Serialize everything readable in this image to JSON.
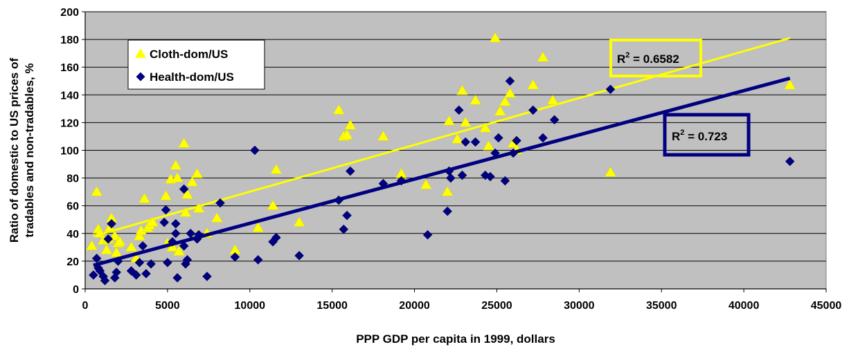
{
  "chart_data": {
    "type": "scatter",
    "xlabel": "PPP GDP per capita in 1999, dollars",
    "ylabel_lines": [
      "Ratio of domestic to US prices of",
      "tradables and non-tradables, %"
    ],
    "xlim": [
      0,
      45000
    ],
    "ylim": [
      0,
      200
    ],
    "xticks": [
      "0",
      "5000",
      "10000",
      "15000",
      "20000",
      "25000",
      "30000",
      "35000",
      "40000",
      "45000"
    ],
    "yticks": [
      "0",
      "20",
      "40",
      "60",
      "80",
      "100",
      "120",
      "140",
      "160",
      "180",
      "200"
    ],
    "grid": "horizontal",
    "background": "#c0c0c0",
    "legend_position": "top-left",
    "series": [
      {
        "name": "Cloth-dom/US",
        "marker": "triangle",
        "color": "#ffff00",
        "trendline": {
          "x": [
            500,
            42800
          ],
          "y": [
            38,
            181
          ]
        },
        "r2_label": {
          "prefix": "R",
          "sup": "2",
          "value": " = 0.6582"
        },
        "points": [
          [
            400,
            31
          ],
          [
            700,
            70
          ],
          [
            800,
            43
          ],
          [
            900,
            40
          ],
          [
            1100,
            35
          ],
          [
            1300,
            28
          ],
          [
            1400,
            36
          ],
          [
            1500,
            44
          ],
          [
            1600,
            51
          ],
          [
            1800,
            38
          ],
          [
            1900,
            26
          ],
          [
            2000,
            33
          ],
          [
            2100,
            34
          ],
          [
            2800,
            30
          ],
          [
            3100,
            22
          ],
          [
            3300,
            38
          ],
          [
            3400,
            42
          ],
          [
            3600,
            65
          ],
          [
            3800,
            44
          ],
          [
            3900,
            46
          ],
          [
            4100,
            48
          ],
          [
            4900,
            67
          ],
          [
            5000,
            33
          ],
          [
            5200,
            79
          ],
          [
            5300,
            30
          ],
          [
            5500,
            89
          ],
          [
            5600,
            80
          ],
          [
            5700,
            27
          ],
          [
            6000,
            105
          ],
          [
            6100,
            55
          ],
          [
            6200,
            68
          ],
          [
            6500,
            77
          ],
          [
            6800,
            83
          ],
          [
            6900,
            58
          ],
          [
            7400,
            40
          ],
          [
            8000,
            51
          ],
          [
            9100,
            28
          ],
          [
            10500,
            44
          ],
          [
            11400,
            60
          ],
          [
            11600,
            86
          ],
          [
            13000,
            48
          ],
          [
            15400,
            129
          ],
          [
            15700,
            110
          ],
          [
            15900,
            111
          ],
          [
            16100,
            118
          ],
          [
            18100,
            110
          ],
          [
            19200,
            83
          ],
          [
            20700,
            75
          ],
          [
            22000,
            70
          ],
          [
            22100,
            121
          ],
          [
            22600,
            108
          ],
          [
            22900,
            143
          ],
          [
            23100,
            120
          ],
          [
            23700,
            136
          ],
          [
            24300,
            116
          ],
          [
            24500,
            103
          ],
          [
            24900,
            181
          ],
          [
            25200,
            128
          ],
          [
            25500,
            135
          ],
          [
            25800,
            141
          ],
          [
            26000,
            105
          ],
          [
            26200,
            100
          ],
          [
            27200,
            147
          ],
          [
            27800,
            167
          ],
          [
            28400,
            136
          ],
          [
            31900,
            84
          ],
          [
            42800,
            147
          ]
        ]
      },
      {
        "name": "Health-dom/US",
        "marker": "diamond",
        "color": "#000080",
        "trendline": {
          "x": [
            500,
            42800
          ],
          "y": [
            17,
            152
          ]
        },
        "r2_label": {
          "prefix": "R",
          "sup": "2",
          "value": " = 0.723"
        },
        "points": [
          [
            500,
            10
          ],
          [
            700,
            22
          ],
          [
            800,
            15
          ],
          [
            900,
            13
          ],
          [
            1100,
            9
          ],
          [
            1200,
            6
          ],
          [
            1400,
            36
          ],
          [
            1600,
            47
          ],
          [
            1800,
            8
          ],
          [
            1900,
            12
          ],
          [
            2000,
            20
          ],
          [
            2800,
            13
          ],
          [
            3100,
            10
          ],
          [
            3300,
            19
          ],
          [
            3500,
            31
          ],
          [
            3700,
            11
          ],
          [
            4000,
            18
          ],
          [
            4800,
            48
          ],
          [
            4900,
            57
          ],
          [
            5000,
            19
          ],
          [
            5300,
            34
          ],
          [
            5500,
            40
          ],
          [
            5500,
            47
          ],
          [
            5600,
            8
          ],
          [
            6000,
            72
          ],
          [
            6000,
            31
          ],
          [
            6100,
            18
          ],
          [
            6200,
            21
          ],
          [
            6400,
            40
          ],
          [
            6800,
            36
          ],
          [
            6900,
            39
          ],
          [
            7400,
            9
          ],
          [
            8200,
            62
          ],
          [
            9100,
            23
          ],
          [
            10300,
            100
          ],
          [
            10500,
            21
          ],
          [
            11400,
            34
          ],
          [
            11600,
            37
          ],
          [
            13000,
            24
          ],
          [
            15400,
            64
          ],
          [
            15700,
            43
          ],
          [
            15900,
            53
          ],
          [
            16100,
            85
          ],
          [
            18100,
            76
          ],
          [
            19200,
            78
          ],
          [
            20800,
            39
          ],
          [
            22000,
            56
          ],
          [
            22100,
            85
          ],
          [
            22200,
            80
          ],
          [
            22700,
            129
          ],
          [
            22900,
            82
          ],
          [
            23100,
            106
          ],
          [
            23700,
            106
          ],
          [
            24300,
            82
          ],
          [
            24600,
            81
          ],
          [
            24900,
            98
          ],
          [
            25100,
            109
          ],
          [
            25500,
            78
          ],
          [
            25800,
            150
          ],
          [
            26000,
            98
          ],
          [
            26200,
            107
          ],
          [
            27200,
            129
          ],
          [
            27800,
            109
          ],
          [
            28500,
            122
          ],
          [
            31900,
            144
          ],
          [
            42800,
            92
          ]
        ]
      }
    ]
  }
}
